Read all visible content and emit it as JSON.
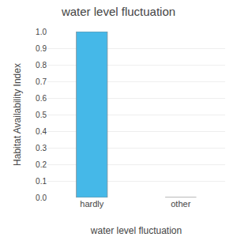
{
  "chart_data": {
    "type": "bar",
    "title": "water level fluctuation",
    "xlabel": "water level fluctuation",
    "ylabel": "Habitat Availability Index",
    "categories": [
      "hardly",
      "other"
    ],
    "values": [
      1.0,
      0.0
    ],
    "color": "#45b8e8",
    "ylim": [
      0.0,
      1.0
    ],
    "yticks": [
      {
        "value": 0.0,
        "label": "0.0"
      },
      0.1,
      0.2,
      0.3,
      0.4,
      0.5,
      0.6,
      0.7,
      0.8,
      0.9,
      {
        "value": 1.0,
        "label": "1.0"
      }
    ],
    "grid": true
  }
}
